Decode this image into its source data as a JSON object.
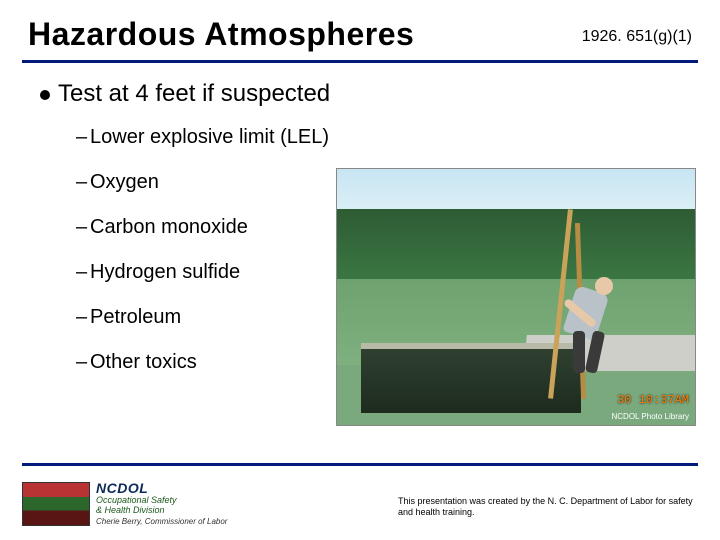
{
  "header": {
    "title": "Hazardous Atmospheres",
    "reference": "1926. 651(g)(1)"
  },
  "rule_color": "#001b7a",
  "content": {
    "l1_text": "Test at 4 feet if suspected",
    "bullets": [
      "Lower explosive limit (LEL)",
      "Oxygen",
      "Carbon monoxide",
      "Hydrogen sulfide",
      "Petroleum",
      "Other toxics"
    ]
  },
  "photo": {
    "timestamp": "30 10:37AM",
    "credit": "NCDOL Photo Library"
  },
  "footer": {
    "brand": "NCDOL",
    "sub1": "Occupational Safety",
    "sub2": "& Health Division",
    "commissioner": "Cherie Berry, Commissioner of Labor",
    "disclaimer": "This presentation was created by the N. C. Department of Labor for safety and health training."
  }
}
